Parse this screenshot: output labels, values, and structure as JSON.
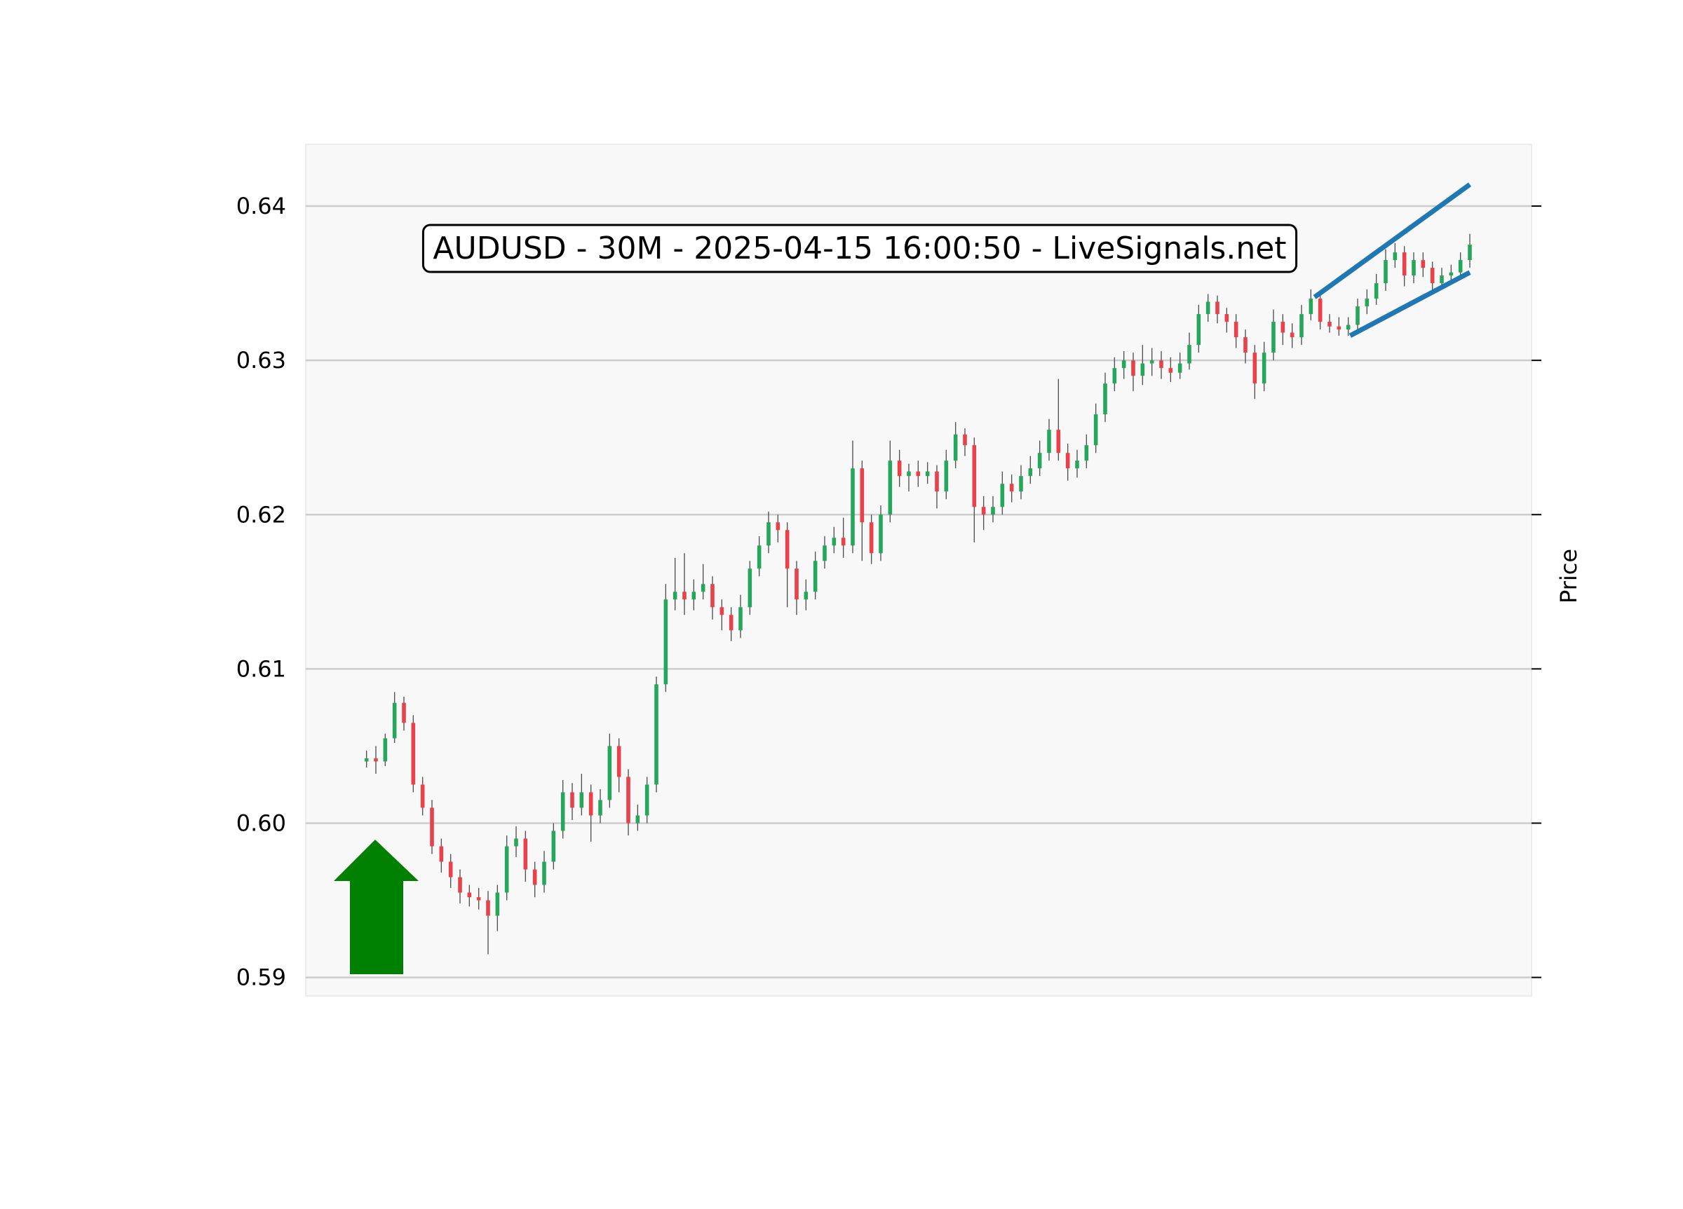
{
  "chart_data": {
    "type": "candlestick",
    "title": "AUDUSD - 30M - 2025-04-15 16:00:50 - LiveSignals.net",
    "y_label": "Price",
    "up_color": "#26a65b",
    "down_color": "#e8414a",
    "wick_color": "#555555",
    "grid": true,
    "xlim": [
      -6.5,
      124.6
    ],
    "ylim": [
      0.5888,
      0.644
    ],
    "yticks": [
      0.59,
      {
        "value": 0.6,
        "label": "0.60"
      },
      0.61,
      0.62,
      0.63,
      0.64
    ],
    "open": [
      0.604,
      0.6042,
      0.604,
      0.6055,
      0.6078,
      0.6065,
      0.6025,
      0.601,
      0.5985,
      0.5975,
      0.5965,
      0.5955,
      0.5952,
      0.595,
      0.594,
      0.5955,
      0.5985,
      0.599,
      0.597,
      0.596,
      0.5975,
      0.5995,
      0.602,
      0.601,
      0.602,
      0.6005,
      0.6015,
      0.605,
      0.603,
      0.6,
      0.6005,
      0.6025,
      0.609,
      0.6145,
      0.615,
      0.6145,
      0.615,
      0.6155,
      0.614,
      0.6135,
      0.6125,
      0.614,
      0.6165,
      0.618,
      0.6195,
      0.619,
      0.6165,
      0.6145,
      0.615,
      0.617,
      0.618,
      0.6185,
      0.618,
      0.623,
      0.6195,
      0.6175,
      0.62,
      0.6235,
      0.6225,
      0.6228,
      0.6225,
      0.6228,
      0.6215,
      0.6235,
      0.6252,
      0.6245,
      0.6205,
      0.62,
      0.6205,
      0.622,
      0.6215,
      0.6225,
      0.623,
      0.624,
      0.6255,
      0.624,
      0.623,
      0.6235,
      0.6245,
      0.6265,
      0.6285,
      0.6295,
      0.63,
      0.629,
      0.6298,
      0.63,
      0.6295,
      0.6292,
      0.6298,
      0.631,
      0.633,
      0.6338,
      0.633,
      0.6325,
      0.6315,
      0.6305,
      0.6285,
      0.6305,
      0.6325,
      0.6318,
      0.6315,
      0.633,
      0.634,
      0.6325,
      0.6322,
      0.632,
      0.6323,
      0.6335,
      0.634,
      0.635,
      0.6365,
      0.637,
      0.6355,
      0.6365,
      0.636,
      0.635,
      0.6355,
      0.6357,
      0.6365
    ],
    "high": [
      0.6047,
      0.605,
      0.6058,
      0.6085,
      0.6082,
      0.607,
      0.603,
      0.6015,
      0.599,
      0.598,
      0.597,
      0.596,
      0.5958,
      0.5956,
      0.596,
      0.5992,
      0.5998,
      0.5995,
      0.5975,
      0.5982,
      0.6,
      0.6028,
      0.6026,
      0.6032,
      0.6025,
      0.6022,
      0.6058,
      0.6055,
      0.6035,
      0.6012,
      0.603,
      0.6095,
      0.6155,
      0.6172,
      0.6175,
      0.6158,
      0.6168,
      0.616,
      0.6145,
      0.614,
      0.6148,
      0.617,
      0.6186,
      0.6202,
      0.62,
      0.6195,
      0.617,
      0.6158,
      0.6176,
      0.6186,
      0.6192,
      0.6198,
      0.6248,
      0.6235,
      0.62,
      0.6206,
      0.6248,
      0.6242,
      0.6233,
      0.6235,
      0.6234,
      0.6232,
      0.6242,
      0.626,
      0.6256,
      0.625,
      0.6212,
      0.6212,
      0.6228,
      0.6226,
      0.6232,
      0.6238,
      0.6248,
      0.6262,
      0.6288,
      0.6246,
      0.6242,
      0.6252,
      0.6272,
      0.6292,
      0.6302,
      0.6306,
      0.6305,
      0.631,
      0.6308,
      0.6306,
      0.6302,
      0.6305,
      0.6318,
      0.6336,
      0.6343,
      0.6342,
      0.6334,
      0.633,
      0.632,
      0.631,
      0.6312,
      0.6333,
      0.633,
      0.6324,
      0.6336,
      0.6346,
      0.6343,
      0.633,
      0.6328,
      0.6328,
      0.634,
      0.6346,
      0.6356,
      0.6372,
      0.6376,
      0.6374,
      0.637,
      0.637,
      0.6364,
      0.636,
      0.6362,
      0.637,
      0.6382
    ],
    "low": [
      0.6036,
      0.6032,
      0.6037,
      0.6052,
      0.606,
      0.602,
      0.6005,
      0.598,
      0.5968,
      0.5958,
      0.5948,
      0.5946,
      0.5944,
      0.5915,
      0.593,
      0.595,
      0.5978,
      0.5962,
      0.5952,
      0.5955,
      0.597,
      0.599,
      0.6002,
      0.6005,
      0.5988,
      0.6,
      0.601,
      0.602,
      0.5992,
      0.5995,
      0.6,
      0.602,
      0.6085,
      0.6138,
      0.6135,
      0.6138,
      0.6145,
      0.6132,
      0.6125,
      0.6118,
      0.612,
      0.6135,
      0.616,
      0.6175,
      0.6182,
      0.614,
      0.6135,
      0.6138,
      0.6145,
      0.6165,
      0.6175,
      0.6172,
      0.6175,
      0.617,
      0.6168,
      0.617,
      0.6195,
      0.6218,
      0.6215,
      0.6218,
      0.622,
      0.6204,
      0.621,
      0.623,
      0.6238,
      0.6182,
      0.619,
      0.6195,
      0.62,
      0.6208,
      0.621,
      0.622,
      0.6225,
      0.6235,
      0.6235,
      0.6222,
      0.6224,
      0.623,
      0.624,
      0.626,
      0.628,
      0.6288,
      0.628,
      0.6284,
      0.629,
      0.6288,
      0.6286,
      0.6288,
      0.6294,
      0.6305,
      0.6325,
      0.6324,
      0.6318,
      0.6308,
      0.6298,
      0.6275,
      0.628,
      0.63,
      0.631,
      0.6308,
      0.631,
      0.6326,
      0.632,
      0.6318,
      0.6316,
      0.6316,
      0.6318,
      0.633,
      0.6336,
      0.6345,
      0.636,
      0.6348,
      0.635,
      0.6354,
      0.6343,
      0.6346,
      0.635,
      0.6353,
      0.636
    ],
    "close": [
      0.6042,
      0.604,
      0.6055,
      0.6078,
      0.6065,
      0.6025,
      0.601,
      0.5985,
      0.5975,
      0.5965,
      0.5955,
      0.5952,
      0.595,
      0.594,
      0.5955,
      0.5985,
      0.599,
      0.597,
      0.596,
      0.5975,
      0.5995,
      0.602,
      0.601,
      0.602,
      0.6005,
      0.6015,
      0.605,
      0.603,
      0.6,
      0.6005,
      0.6025,
      0.609,
      0.6145,
      0.615,
      0.6145,
      0.615,
      0.6155,
      0.614,
      0.6135,
      0.6125,
      0.614,
      0.6165,
      0.618,
      0.6195,
      0.619,
      0.6165,
      0.6145,
      0.615,
      0.617,
      0.618,
      0.6185,
      0.618,
      0.623,
      0.6195,
      0.6175,
      0.62,
      0.6235,
      0.6225,
      0.6228,
      0.6225,
      0.6228,
      0.6215,
      0.6235,
      0.6252,
      0.6245,
      0.6205,
      0.62,
      0.6205,
      0.622,
      0.6215,
      0.6225,
      0.623,
      0.624,
      0.6255,
      0.624,
      0.623,
      0.6235,
      0.6245,
      0.6265,
      0.6285,
      0.6295,
      0.63,
      0.629,
      0.6298,
      0.63,
      0.6295,
      0.6292,
      0.6298,
      0.631,
      0.633,
      0.6338,
      0.633,
      0.6325,
      0.6315,
      0.6305,
      0.6285,
      0.6305,
      0.6325,
      0.6318,
      0.6315,
      0.633,
      0.634,
      0.6325,
      0.6322,
      0.632,
      0.6323,
      0.6335,
      0.634,
      0.635,
      0.6365,
      0.637,
      0.6355,
      0.6365,
      0.636,
      0.635,
      0.6355,
      0.6357,
      0.6365,
      0.6375
    ],
    "trend_lines": [
      {
        "x": [
          101.4,
          118
        ],
        "y": [
          0.6341,
          0.6414
        ],
        "color": "#1f77b4"
      },
      {
        "x": [
          105.2,
          118
        ],
        "y": [
          0.6316,
          0.6357
        ],
        "color": "#1f77b4"
      }
    ]
  }
}
